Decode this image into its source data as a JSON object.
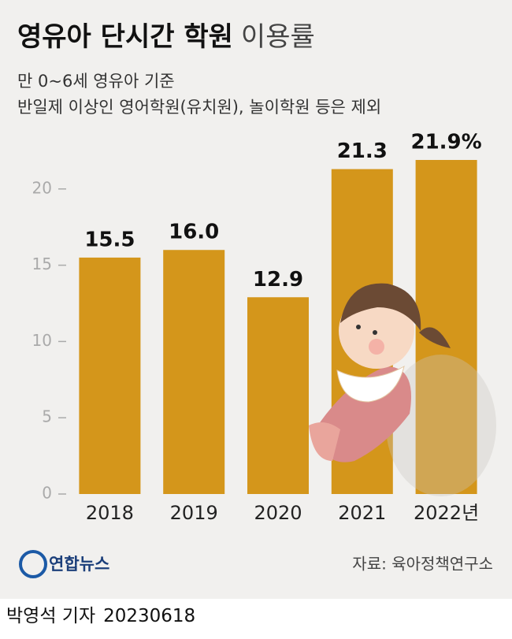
{
  "chart_data": {
    "type": "bar",
    "title": "영유아 단시간 학원",
    "title_light": "이용률",
    "subtitle": [
      "만 0~6세 영유아 기준",
      "반일제 이상인 영어학원(유치원), 놀이학원 등은 제외"
    ],
    "categories": [
      "2018",
      "2019",
      "2020",
      "2021",
      "2022년"
    ],
    "values": [
      15.5,
      16.0,
      12.9,
      21.3,
      21.9
    ],
    "value_labels": [
      "15.5",
      "16.0",
      "12.9",
      "21.3",
      "21.9%"
    ],
    "color": "#d4961b",
    "ylim": [
      0,
      25
    ],
    "yticks": [
      0,
      5,
      10,
      15,
      20
    ],
    "source": "자료: 육아정책연구소",
    "logo": "연합뉴스",
    "byline": "박영석 기자",
    "date": "20230618"
  }
}
